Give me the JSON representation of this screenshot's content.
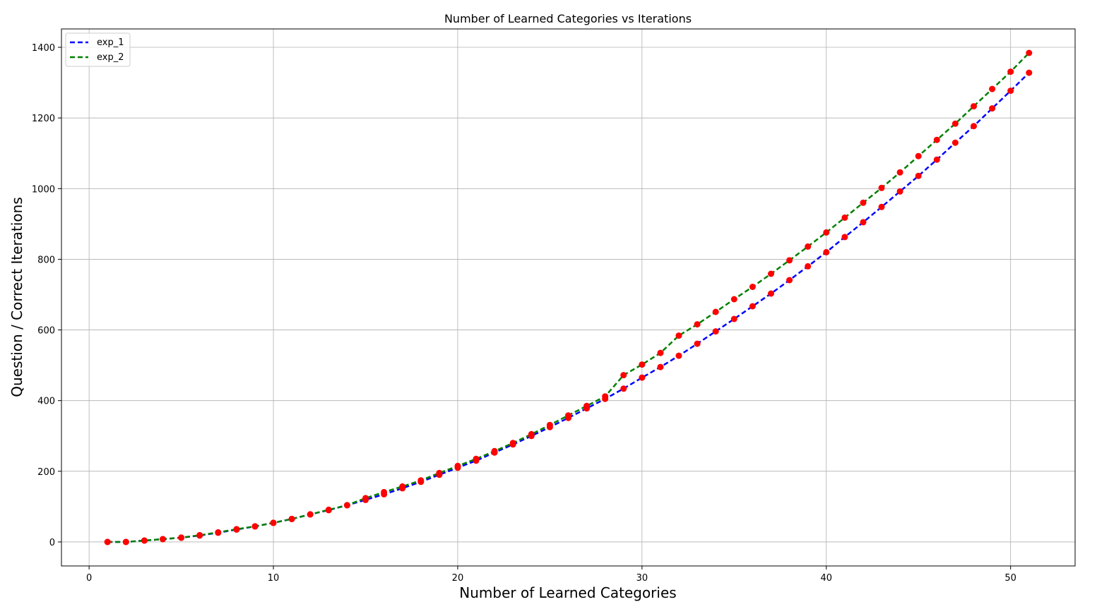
{
  "chart_data": {
    "type": "line",
    "title": "Number of Learned Categories vs Iterations",
    "xlabel": "Number of Learned Categories",
    "ylabel": "Question / Correct Iterations",
    "xlim": [
      -1.5,
      53.5
    ],
    "ylim": [
      -68,
      1452
    ],
    "xticks": [
      0,
      10,
      20,
      30,
      40,
      50
    ],
    "yticks": [
      0,
      200,
      400,
      600,
      800,
      1000,
      1200,
      1400
    ],
    "grid": true,
    "legend_position": "upper-left",
    "marker_color": "#ff0000",
    "x": [
      1,
      2,
      3,
      4,
      5,
      6,
      7,
      8,
      9,
      10,
      11,
      12,
      13,
      14,
      15,
      16,
      17,
      18,
      19,
      20,
      21,
      22,
      23,
      24,
      25,
      26,
      27,
      28,
      29,
      30,
      31,
      32,
      33,
      34,
      35,
      36,
      37,
      38,
      39,
      40,
      41,
      42,
      43,
      44,
      45,
      46,
      47,
      48,
      49,
      50,
      51
    ],
    "series": [
      {
        "name": "exp_1",
        "color": "#0000ff",
        "style": "dashed",
        "values": [
          0,
          0,
          4,
          8,
          12,
          18,
          26,
          35,
          44,
          54,
          65,
          78,
          90,
          104,
          119,
          135,
          152,
          170,
          190,
          210,
          230,
          253,
          276,
          300,
          325,
          351,
          378,
          405,
          434,
          465,
          495,
          527,
          561,
          596,
          631,
          667,
          703,
          741,
          780,
          820,
          863,
          905,
          948,
          992,
          1036,
          1082,
          1130,
          1177,
          1227,
          1277,
          1328
        ]
      },
      {
        "name": "exp_2",
        "color": "#008000",
        "style": "dashed",
        "values": [
          0,
          0,
          4,
          8,
          12,
          19,
          27,
          36,
          44,
          54,
          65,
          78,
          91,
          104,
          124,
          141,
          157,
          174,
          195,
          215,
          235,
          257,
          280,
          305,
          331,
          358,
          385,
          412,
          472,
          502,
          535,
          584,
          616,
          651,
          687,
          722,
          759,
          797,
          836,
          876,
          918,
          960,
          1002,
          1046,
          1092,
          1138,
          1184,
          1233,
          1282,
          1331,
          1384
        ]
      }
    ]
  }
}
